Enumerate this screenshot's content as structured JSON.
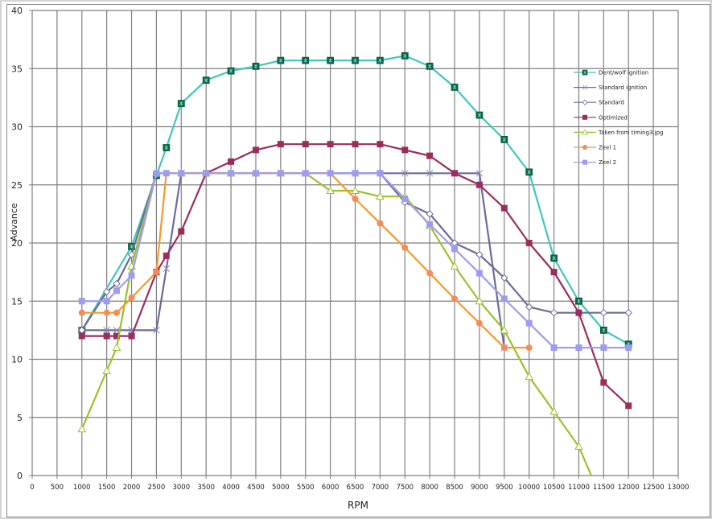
{
  "chart_data": {
    "type": "line",
    "title": "",
    "xlabel": "RPM",
    "ylabel": "Advance",
    "xlim": [
      0,
      13000
    ],
    "ylim": [
      0,
      40
    ],
    "x_ticks": [
      0,
      500,
      1000,
      1500,
      2000,
      2500,
      3000,
      3500,
      4000,
      4500,
      5000,
      5500,
      6000,
      6500,
      7000,
      7500,
      8000,
      8500,
      9000,
      9500,
      10000,
      10500,
      11000,
      11500,
      12000,
      12500,
      13000
    ],
    "y_ticks": [
      0,
      5,
      10,
      15,
      20,
      25,
      30,
      35,
      40
    ],
    "grid": true,
    "legend_position": "upper-right-inside",
    "series": [
      {
        "name": "Dent/wolf ignition",
        "color": "#3fc6c0",
        "marker": "box-x",
        "marker_color": "#0e5e4a",
        "x": [
          1000,
          2000,
          2500,
          2700,
          3000,
          3500,
          4000,
          4500,
          5000,
          5500,
          6000,
          6500,
          7000,
          7500,
          8000,
          8500,
          9000,
          9500,
          10000,
          10500,
          11000,
          11500,
          12000
        ],
        "y": [
          12.5,
          19.7,
          25.8,
          28.2,
          32,
          34,
          34.8,
          35.2,
          35.7,
          35.7,
          35.7,
          35.7,
          35.7,
          36.1,
          35.2,
          33.4,
          31,
          28.9,
          26.1,
          18.7,
          15,
          12.5,
          11.3
        ]
      },
      {
        "name": "Standard ignition",
        "color": "#6b6b9a",
        "marker": "x",
        "marker_color": "#8a8ab8",
        "x": [
          1000,
          1500,
          1700,
          2000,
          2500,
          2700,
          3000,
          3500,
          4000,
          4500,
          5000,
          5500,
          6000,
          6500,
          7000,
          7500,
          8000,
          8500,
          9000,
          9500
        ],
        "y": [
          12.5,
          12.5,
          12.5,
          12.5,
          12.5,
          17.8,
          26,
          26,
          26,
          26,
          26,
          26,
          26,
          26,
          26,
          26,
          26,
          26,
          26,
          11
        ]
      },
      {
        "name": "Standard",
        "color": "#6b6b9a",
        "marker": "diamond",
        "marker_color": "#ffffff",
        "x": [
          1000,
          1500,
          1700,
          2000,
          2500,
          3000,
          3500,
          4000,
          4500,
          5000,
          5500,
          6000,
          6500,
          7000,
          7500,
          8000,
          8500,
          9000,
          9500,
          10000,
          10500,
          11000,
          11500,
          12000
        ],
        "y": [
          12.5,
          15.8,
          16.5,
          19,
          26,
          26,
          26,
          26,
          26,
          26,
          26,
          26,
          26,
          26,
          23.5,
          22.5,
          20,
          19,
          17,
          14.5,
          14,
          14,
          14,
          14
        ]
      },
      {
        "name": "Optimized",
        "color": "#9b2c5e",
        "marker": "square",
        "marker_color": "#9b2c5e",
        "x": [
          1000,
          1500,
          1700,
          2000,
          2500,
          2700,
          3000,
          3500,
          4000,
          4500,
          5000,
          5500,
          6000,
          6500,
          7000,
          7500,
          8000,
          8500,
          9000,
          9500,
          10000,
          10500,
          11000,
          11500,
          12000
        ],
        "y": [
          12,
          12,
          12,
          12,
          17.5,
          18.9,
          21,
          26,
          27,
          28,
          28.5,
          28.5,
          28.5,
          28.5,
          28.5,
          28,
          27.5,
          26,
          25,
          23,
          20,
          17.5,
          14,
          8,
          6
        ]
      },
      {
        "name": "Taken from timing3.jpg",
        "color": "#99c22a",
        "marker": "triangle",
        "marker_color": "#ffffff",
        "x": [
          1000,
          1500,
          1700,
          2000,
          2500,
          3000,
          3500,
          4000,
          4500,
          5000,
          5500,
          6000,
          6500,
          7000,
          7500,
          8000,
          8500,
          9000,
          9500,
          10000,
          10500,
          11000,
          11250
        ],
        "y": [
          4,
          9,
          11,
          18,
          26,
          26,
          26,
          26,
          26,
          26,
          26,
          24.5,
          24.5,
          24,
          24,
          21.5,
          18,
          15,
          12.5,
          8.5,
          5.5,
          2.5,
          0
        ]
      },
      {
        "name": "Zeel 1",
        "color": "#f79a26",
        "marker": "circle",
        "marker_color": "#f78a5a",
        "x": [
          1000,
          1500,
          1700,
          2000,
          2500,
          2700,
          3000,
          3500,
          4000,
          4500,
          5000,
          5500,
          6000,
          6500,
          7000,
          7500,
          8000,
          8500,
          9000,
          9500,
          10000
        ],
        "y": [
          14,
          14,
          14,
          15.3,
          17.5,
          26,
          26,
          26,
          26,
          26,
          26,
          26,
          26,
          23.8,
          21.7,
          19.6,
          17.4,
          15.2,
          13.1,
          11,
          11
        ]
      },
      {
        "name": "Zeel 2",
        "color": "#9e9cf2",
        "marker": "square",
        "marker_color": "#9e9cf2",
        "x": [
          1000,
          1500,
          1700,
          2000,
          2500,
          2700,
          3000,
          3500,
          4000,
          4500,
          5000,
          5500,
          6000,
          6500,
          7000,
          7500,
          8000,
          8500,
          9000,
          9500,
          10000,
          10500,
          11000,
          11500,
          12000
        ],
        "y": [
          15,
          15,
          15.9,
          17.2,
          26,
          26,
          26,
          26,
          26,
          26,
          26,
          26,
          26,
          26,
          26,
          23.8,
          21.6,
          19.5,
          17.4,
          15.2,
          13.1,
          11,
          11,
          11,
          11
        ]
      }
    ]
  }
}
